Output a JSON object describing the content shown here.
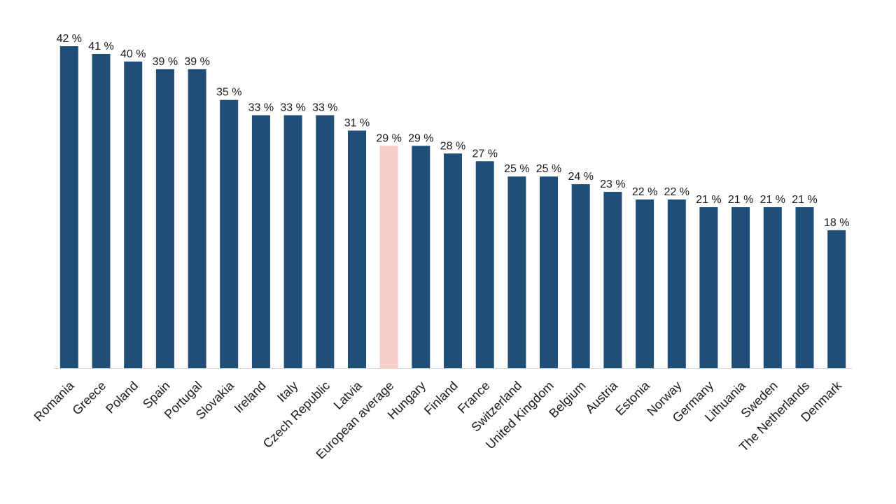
{
  "chart_data": {
    "type": "bar",
    "title": "",
    "xlabel": "",
    "ylabel": "",
    "ylim": [
      0,
      42
    ],
    "grid": false,
    "value_suffix": " %",
    "bar_color": "#1f4e79",
    "highlight_color": "#f8cfcb",
    "highlight_category": "European average",
    "categories": [
      "Romania",
      "Greece",
      "Poland",
      "Spain",
      "Portugal",
      "Slovakia",
      "Ireland",
      "Italy",
      "Czech Republic",
      "Latvia",
      "European average",
      "Hungary",
      "Finland",
      "France",
      "Switzerland",
      "United Kingdom",
      "Belgium",
      "Austria",
      "Estonia",
      "Norway",
      "Germany",
      "Lithuania",
      "Sweden",
      "The Netherlands",
      "Denmark"
    ],
    "values": [
      42,
      41,
      40,
      39,
      39,
      35,
      33,
      33,
      33,
      31,
      29,
      29,
      28,
      27,
      25,
      25,
      24,
      23,
      22,
      22,
      21,
      21,
      21,
      21,
      18
    ]
  }
}
